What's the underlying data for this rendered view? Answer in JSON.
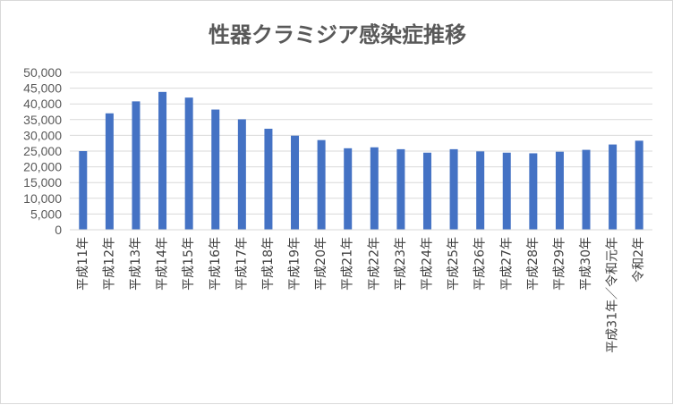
{
  "chart_data": {
    "type": "bar",
    "title": "性器クラミジア感染症推移",
    "xlabel": "",
    "ylabel": "",
    "ylim": [
      0,
      50000
    ],
    "yticks": [
      "0",
      "5,000",
      "10,000",
      "15,000",
      "20,000",
      "25,000",
      "30,000",
      "35,000",
      "40,000",
      "45,000",
      "50,000"
    ],
    "grid": true,
    "legend": "none",
    "bar_color": "#4472c4",
    "categories": [
      "平成11年",
      "平成12年",
      "平成13年",
      "平成14年",
      "平成15年",
      "平成16年",
      "平成17年",
      "平成18年",
      "平成19年",
      "平成20年",
      "平成21年",
      "平成22年",
      "平成23年",
      "平成24年",
      "平成25年",
      "平成26年",
      "平成27年",
      "平成28年",
      "平成29年",
      "平成30年",
      "平成31年／令和元年",
      "令和2年"
    ],
    "values": [
      25000,
      37000,
      40800,
      43800,
      42000,
      38200,
      35100,
      32100,
      29900,
      28500,
      25900,
      26200,
      25600,
      24500,
      25600,
      24900,
      24500,
      24300,
      24800,
      25400,
      27100,
      28300
    ]
  }
}
